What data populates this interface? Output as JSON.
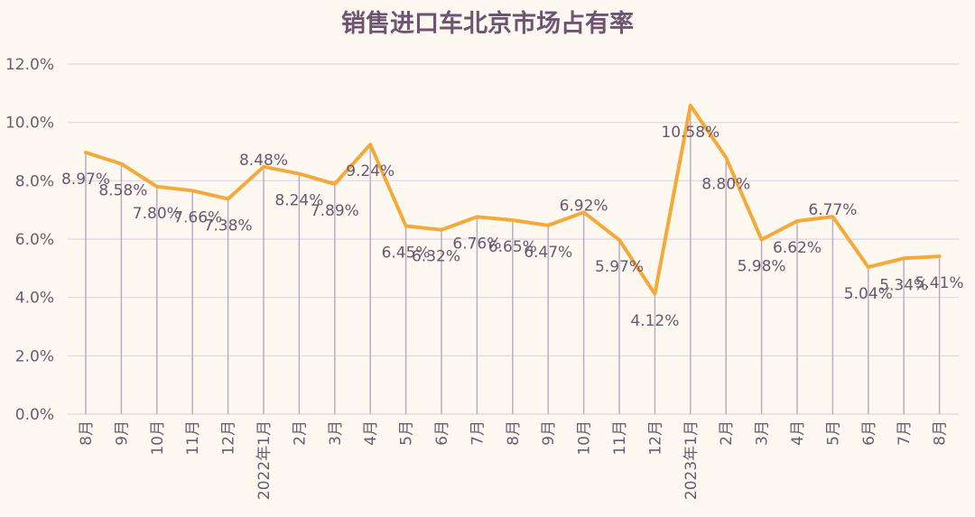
{
  "chart_data": {
    "type": "line",
    "title": "销售进口车北京市场占有率",
    "categories": [
      "8月",
      "9月",
      "10月",
      "11月",
      "12月",
      "2022年1月",
      "2月",
      "3月",
      "4月",
      "5月",
      "6月",
      "7月",
      "8月",
      "9月",
      "10月",
      "11月",
      "12月",
      "2023年1月",
      "2月",
      "3月",
      "4月",
      "5月",
      "6月",
      "7月",
      "8月"
    ],
    "values": [
      8.97,
      8.58,
      7.8,
      7.66,
      7.38,
      8.48,
      8.24,
      7.89,
      9.24,
      6.45,
      6.32,
      6.76,
      6.65,
      6.47,
      6.92,
      5.97,
      4.12,
      10.58,
      8.8,
      5.98,
      6.62,
      6.77,
      5.04,
      5.34,
      5.41
    ],
    "data_labels": [
      "8.97%",
      "8.58%",
      "7.80%",
      "7.66%",
      "7.38%",
      "8.48%",
      "8.24%",
      "7.89%",
      "9.24%",
      "6.45%",
      "6.32%",
      "6.76%",
      "6.65%",
      "6.47%",
      "6.92%",
      "5.97%",
      "4.12%",
      "10.58%",
      "8.80%",
      "5.98%",
      "6.62%",
      "6.77%",
      "5.04%",
      "5.34%",
      "5.41%"
    ],
    "y_ticks": [
      "0.0%",
      "2.0%",
      "4.0%",
      "6.0%",
      "8.0%",
      "10.0%",
      "12.0%"
    ],
    "ylim": [
      0,
      12
    ],
    "grid": true,
    "legend": "none",
    "xlabel": "",
    "ylabel": "",
    "colors": {
      "line": "#f6a93b",
      "grid": "#ddd5e4",
      "drop_line": "#b8a8c2",
      "text": "#6d5a72"
    }
  }
}
